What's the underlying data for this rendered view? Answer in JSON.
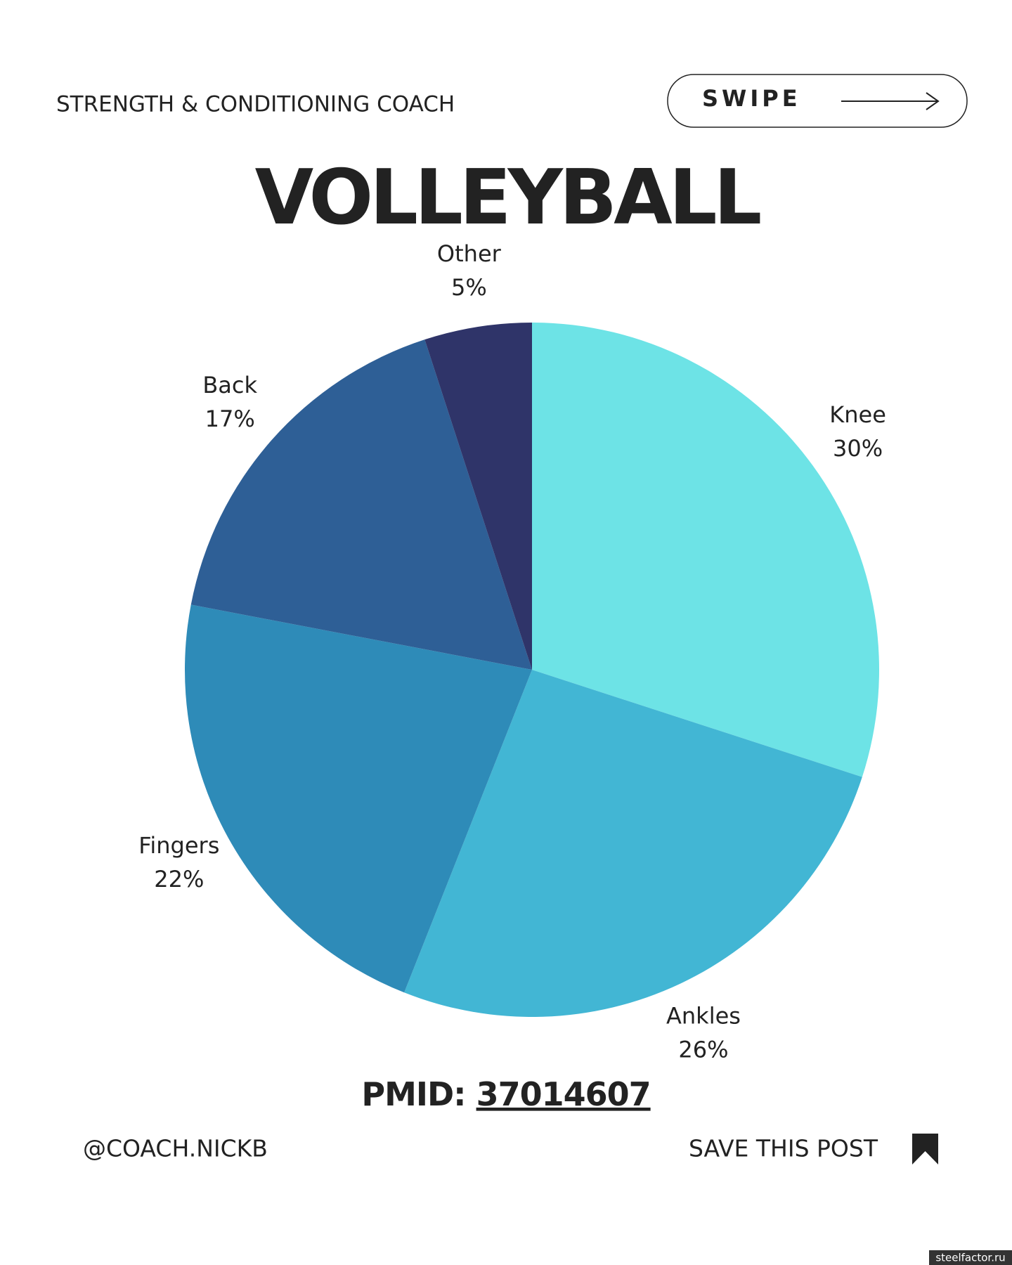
{
  "header": {
    "tagline": "STRENGTH & CONDITIONING COACH",
    "button": "SWIPE"
  },
  "chart_data": {
    "type": "pie",
    "title": "VOLLEYBALL",
    "categories": [
      "Knee",
      "Ankles",
      "Fingers",
      "Back",
      "Other"
    ],
    "values": [
      30,
      26,
      22,
      17,
      5
    ],
    "value_labels": [
      "30%",
      "26%",
      "22%",
      "17%",
      "5%"
    ],
    "colors": [
      "#6de3e6",
      "#42b6d4",
      "#2e8bb8",
      "#2e5f96",
      "#2f3469"
    ]
  },
  "source": {
    "label": "PMID:",
    "id": "37014607"
  },
  "footer": {
    "handle": "@COACH.NICKB",
    "cta": "SAVE THIS POST",
    "watermark": "steelfactor.ru"
  }
}
